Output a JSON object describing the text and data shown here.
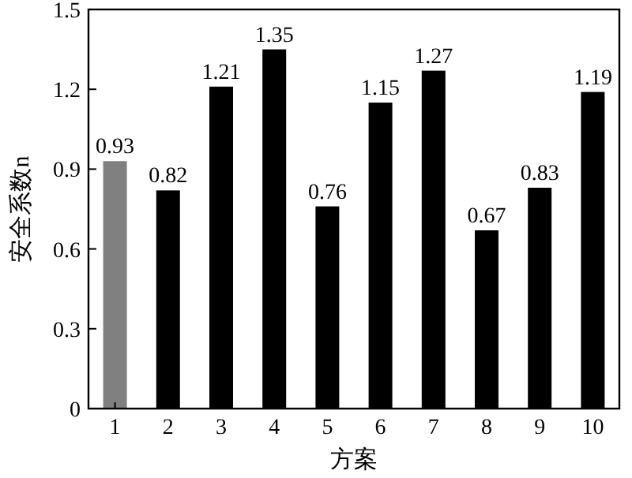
{
  "chart_data": {
    "type": "bar",
    "xlabel": "方案",
    "ylabel": "安全系数n",
    "categories": [
      "1",
      "2",
      "3",
      "4",
      "5",
      "6",
      "7",
      "8",
      "9",
      "10"
    ],
    "values": [
      0.93,
      0.82,
      1.21,
      1.35,
      0.76,
      1.15,
      1.27,
      0.67,
      0.83,
      1.19
    ],
    "colors": [
      "#808080",
      "#000000",
      "#000000",
      "#000000",
      "#000000",
      "#000000",
      "#000000",
      "#000000",
      "#000000",
      "#000000"
    ],
    "ylim": [
      0,
      1.5
    ],
    "yticks": [
      {
        "value": 0,
        "label": "0"
      },
      0.3,
      0.6,
      0.9,
      1.2,
      1.5
    ],
    "data_labels": true
  }
}
